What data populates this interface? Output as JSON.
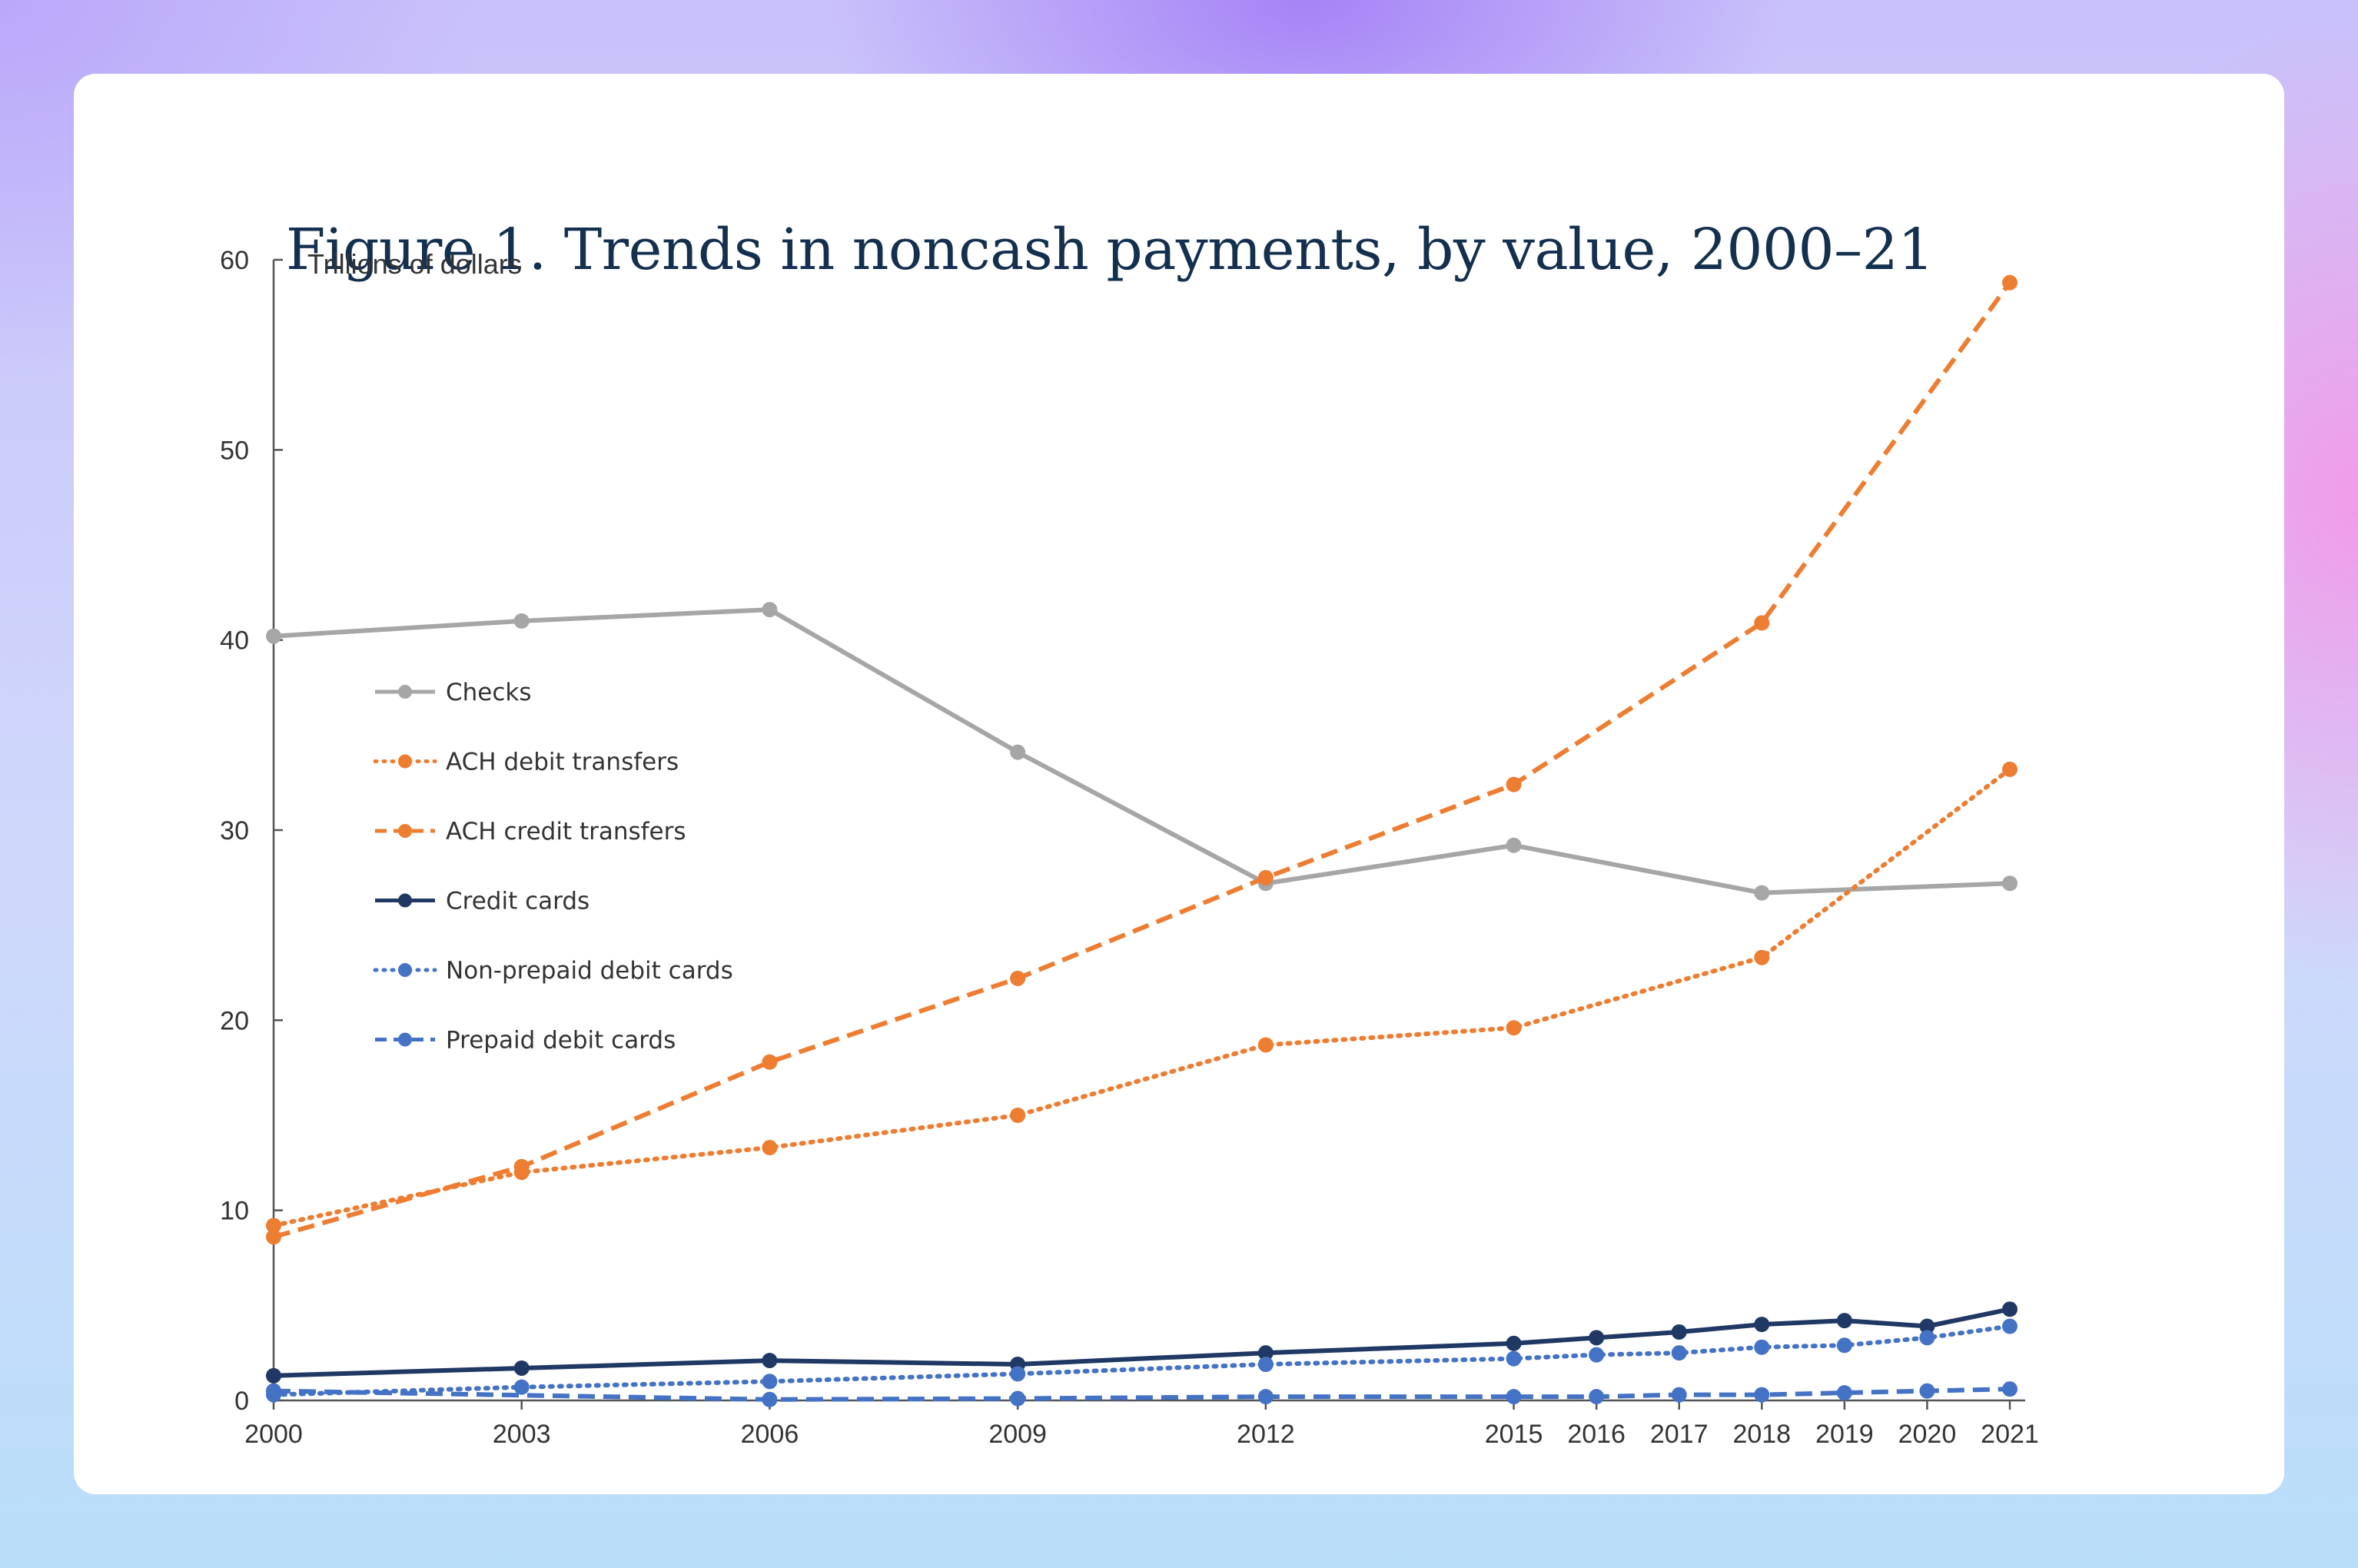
{
  "figure": {
    "title": "Figure 1. Trends in noncash payments, by value, 2000–21"
  },
  "chart_data": {
    "type": "line",
    "title": "Figure 1. Trends in noncash payments, by value, 2000–21",
    "ylabel": "Trillions of dollars",
    "xlabel": "",
    "ylim": [
      0,
      60
    ],
    "yticks": [
      0,
      10,
      20,
      30,
      40,
      50,
      60
    ],
    "x": [
      2000,
      2003,
      2006,
      2009,
      2012,
      2015,
      2016,
      2017,
      2018,
      2019,
      2020,
      2021
    ],
    "xtick_labels": [
      "2000",
      "2003",
      "2006",
      "2009",
      "2012",
      "2015",
      "2016",
      "2017",
      "2018",
      "2019",
      "2020",
      "2021"
    ],
    "legend_position": "left-center",
    "series": [
      {
        "name": "Checks",
        "color": "#a6a6a6",
        "style": "solid",
        "x": [
          2000,
          2003,
          2006,
          2009,
          2012,
          2015,
          2018,
          2021
        ],
        "values": [
          40.2,
          41.0,
          41.6,
          34.1,
          27.2,
          29.2,
          26.7,
          27.2
        ]
      },
      {
        "name": "ACH debit transfers",
        "color": "#ed7d31",
        "style": "dotted",
        "x": [
          2000,
          2003,
          2006,
          2009,
          2012,
          2015,
          2018,
          2021
        ],
        "values": [
          9.2,
          12.0,
          13.3,
          15.0,
          18.7,
          19.6,
          23.3,
          33.2
        ]
      },
      {
        "name": "ACH credit transfers",
        "color": "#ed7d31",
        "style": "dashed",
        "x": [
          2000,
          2003,
          2006,
          2009,
          2012,
          2015,
          2018,
          2021
        ],
        "values": [
          8.6,
          12.3,
          17.8,
          22.2,
          27.5,
          32.4,
          40.9,
          58.8
        ]
      },
      {
        "name": "Credit cards",
        "color": "#203864",
        "style": "solid",
        "x": [
          2000,
          2003,
          2006,
          2009,
          2012,
          2015,
          2016,
          2017,
          2018,
          2019,
          2020,
          2021
        ],
        "values": [
          1.3,
          1.7,
          2.1,
          1.9,
          2.5,
          3.0,
          3.3,
          3.6,
          4.0,
          4.2,
          3.9,
          4.8
        ]
      },
      {
        "name": "Non-prepaid debit cards",
        "color": "#4472c4",
        "style": "dotted",
        "x": [
          2000,
          2003,
          2006,
          2009,
          2012,
          2015,
          2016,
          2017,
          2018,
          2019,
          2020,
          2021
        ],
        "values": [
          0.3,
          0.7,
          1.0,
          1.4,
          1.9,
          2.2,
          2.4,
          2.5,
          2.8,
          2.9,
          3.3,
          3.9
        ]
      },
      {
        "name": "Prepaid debit cards",
        "color": "#4472c4",
        "style": "dashed",
        "x": [
          2000,
          2006,
          2009,
          2012,
          2015,
          2016,
          2017,
          2018,
          2019,
          2020,
          2021
        ],
        "values": [
          0.5,
          0.05,
          0.1,
          0.2,
          0.2,
          0.2,
          0.3,
          0.3,
          0.4,
          0.5,
          0.6
        ]
      }
    ]
  }
}
